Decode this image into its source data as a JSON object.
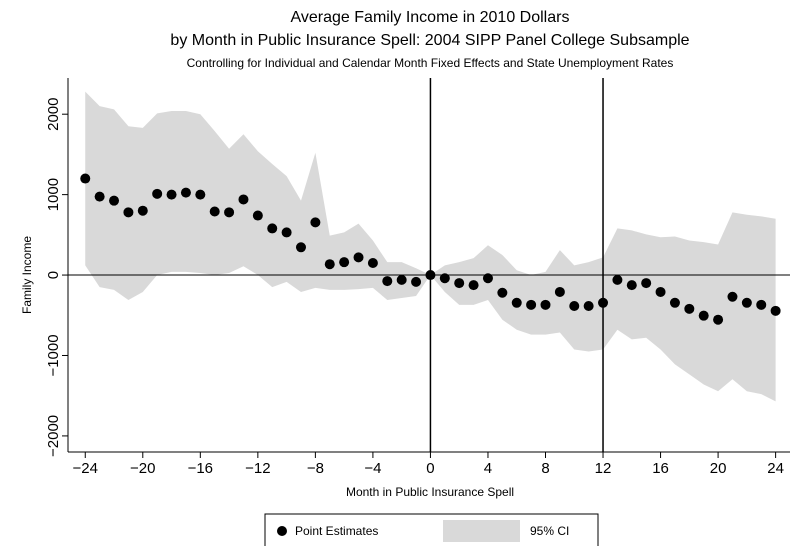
{
  "chart_data": {
    "type": "scatter",
    "title": "Average Family Income in 2010 Dollars",
    "subtitle": "by Month in Public Insurance Spell: 2004 SIPP Panel College Subsample",
    "note": "Controlling for Individual and Calendar Month Fixed Effects and State Unemployment Rates",
    "x_label": "Month in Public Insurance Spell",
    "y_label": "Family Income",
    "x": [
      -24,
      -23,
      -22,
      -21,
      -20,
      -19,
      -18,
      -17,
      -16,
      -15,
      -14,
      -13,
      -12,
      -11,
      -10,
      -9,
      -8,
      -7,
      -6,
      -5,
      -4,
      -3,
      -2,
      -1,
      0,
      1,
      2,
      3,
      4,
      5,
      6,
      7,
      8,
      9,
      10,
      11,
      12,
      13,
      14,
      15,
      16,
      17,
      18,
      19,
      20,
      21,
      22,
      23,
      24
    ],
    "series": [
      {
        "name": "Point Estimates",
        "color": "#000000",
        "values": [
          1200,
          975,
          925,
          780,
          800,
          1010,
          1000,
          1025,
          1000,
          790,
          780,
          940,
          740,
          580,
          530,
          345,
          655,
          135,
          160,
          220,
          150,
          -75,
          -60,
          -85,
          0,
          -40,
          -100,
          -125,
          -40,
          -220,
          -345,
          -370,
          -370,
          -210,
          -385,
          -385,
          -345,
          -60,
          -125,
          -100,
          -210,
          -345,
          -420,
          -505,
          -555,
          -270,
          -345,
          -370,
          -445
        ]
      }
    ],
    "band": {
      "name": "95% CI",
      "color": "#d9d9d9",
      "upper": [
        2280,
        2100,
        2060,
        1850,
        1830,
        2010,
        2040,
        2040,
        2000,
        1790,
        1570,
        1750,
        1540,
        1380,
        1230,
        925,
        1520,
        490,
        530,
        640,
        430,
        160,
        160,
        85,
        0,
        120,
        160,
        210,
        370,
        250,
        60,
        0,
        40,
        310,
        120,
        160,
        220,
        580,
        555,
        505,
        470,
        480,
        430,
        410,
        380,
        780,
        750,
        730,
        700
      ],
      "lower": [
        120,
        -150,
        -185,
        -310,
        -210,
        0,
        40,
        40,
        25,
        0,
        25,
        110,
        0,
        -150,
        -85,
        -210,
        -160,
        -185,
        -185,
        -175,
        -160,
        -310,
        -285,
        -260,
        0,
        -210,
        -370,
        -370,
        -310,
        -555,
        -680,
        -740,
        -740,
        -715,
        -925,
        -950,
        -925,
        -680,
        -800,
        -780,
        -925,
        -1110,
        -1235,
        -1360,
        -1445,
        -1295,
        -1445,
        -1480,
        -1570
      ]
    },
    "xlim": [
      -25.2,
      25
    ],
    "ylim": [
      -2200,
      2450
    ],
    "xticks": [
      {
        "value": -24,
        "label": "−24"
      },
      {
        "value": -20,
        "label": "−20"
      },
      {
        "value": -16,
        "label": "−16"
      },
      {
        "value": -12,
        "label": "−12"
      },
      {
        "value": -8,
        "label": "−8"
      },
      {
        "value": -4,
        "label": "−4"
      },
      0,
      4,
      8,
      12,
      16,
      20,
      24
    ],
    "yticks": [
      {
        "value": -2000,
        "label": "−2000"
      },
      {
        "value": -1000,
        "label": "−1000"
      },
      0,
      1000,
      2000
    ],
    "vlines": [
      0,
      12
    ],
    "hlines": [
      0
    ]
  }
}
